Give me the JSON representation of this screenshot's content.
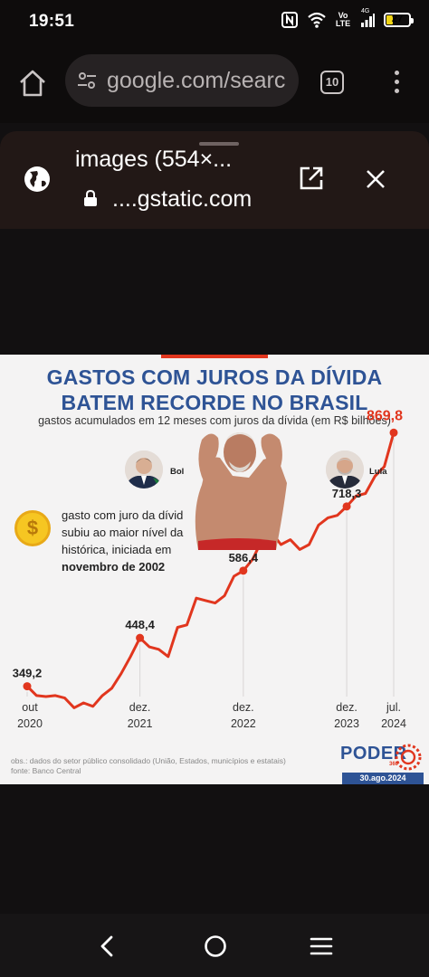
{
  "status_bar": {
    "time": "19:51",
    "network_label": "Vo\nLTE",
    "signal_label": "4G",
    "battery_level": "27"
  },
  "browser": {
    "url_text": "google.com/searc",
    "tab_count": "10"
  },
  "sheet": {
    "title": "images (554×...",
    "url": "....gstatic.com"
  },
  "image": {
    "title_line1": "GASTOS COM JUROS DA DÍVIDA",
    "title_line2": "BATEM RECORDE NO BRASIL",
    "subtitle": "gastos acumulados em 12 meses com juros da dívida (em R$ bilhões)",
    "president_left": "Bol",
    "president_right": "Lula",
    "note_line1": "gasto com juro da dívid",
    "note_line2": "subiu ao maior nível da",
    "note_line3": "histórica, iniciada em",
    "note_line4": "novembro de 2002",
    "footer_line1": "obs.: dados do setor público consolidado (União, Estados, municípios e estatais)",
    "footer_line2": "fonte: Banco Central",
    "logo": "PODER",
    "logo_sub": "360",
    "date_badge": "30.ago.2024",
    "accent_color": "#e1361e",
    "title_color": "#2e5395"
  },
  "chart_data": {
    "type": "line",
    "title": "GASTOS COM JUROS DA DÍVIDA BATEM RECORDE NO BRASIL",
    "subtitle": "gastos acumulados em 12 meses com juros da dívida (em R$ bilhões)",
    "x_tick_labels": [
      {
        "line1": "out",
        "line2": "2020"
      },
      {
        "line1": "dez.",
        "line2": "2021"
      },
      {
        "line1": "dez.",
        "line2": "2022"
      },
      {
        "line1": "dez.",
        "line2": "2023"
      },
      {
        "line1": "jul.",
        "line2": "2024"
      }
    ],
    "labeled_points": [
      {
        "x": "out 2020",
        "y": 349.2,
        "label": "349,2"
      },
      {
        "x": "dez. 2021",
        "y": 448.4,
        "label": "448,4"
      },
      {
        "x": "dez. 2022",
        "y": 586.4,
        "label": "586,4"
      },
      {
        "x": "dez. 2023",
        "y": 718.3,
        "label": "718,3"
      },
      {
        "x": "jul. 2024",
        "y": 869.8,
        "label": "869,8"
      }
    ],
    "series": [
      {
        "values": [
          349.2,
          330,
          328,
          330,
          325,
          305,
          315,
          308,
          330,
          345,
          375,
          410,
          448.4,
          430,
          425,
          410,
          470,
          475,
          530,
          525,
          520,
          535,
          575,
          586.4,
          610,
          650,
          665,
          640,
          650,
          630,
          640,
          680,
          695,
          700,
          718.3,
          740,
          745,
          780,
          800,
          869.8
        ]
      }
    ],
    "ylim": [
      250,
      900
    ],
    "grid": false
  }
}
